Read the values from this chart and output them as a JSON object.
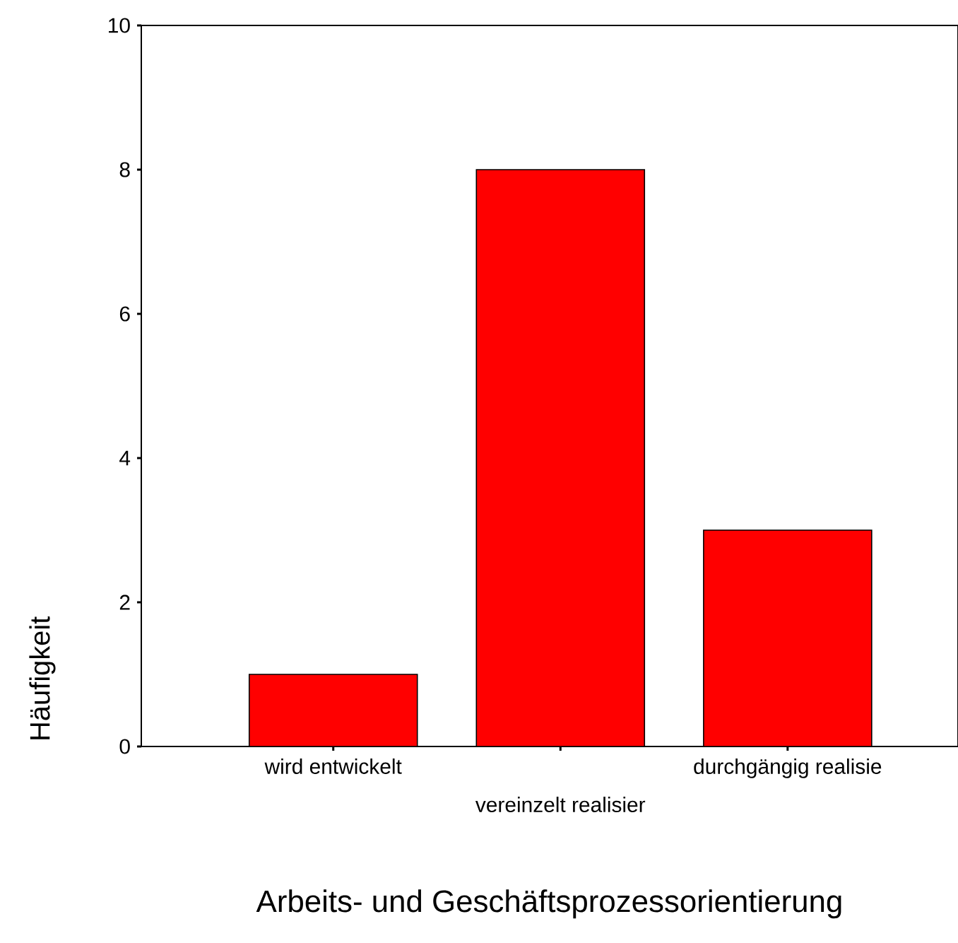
{
  "chart_data": {
    "type": "bar",
    "xlabel": "Arbeits- und Geschäftsprozessorientierung",
    "ylabel": "Häufigkeit",
    "categories": [
      "wird entwickelt",
      "vereinzelt realisier",
      "durchgängig realisie"
    ],
    "values": [
      1,
      8,
      3
    ],
    "color": "#ff0000",
    "ylim": [
      0,
      10
    ],
    "yticks": [
      0,
      2,
      4,
      6,
      8,
      10
    ]
  }
}
